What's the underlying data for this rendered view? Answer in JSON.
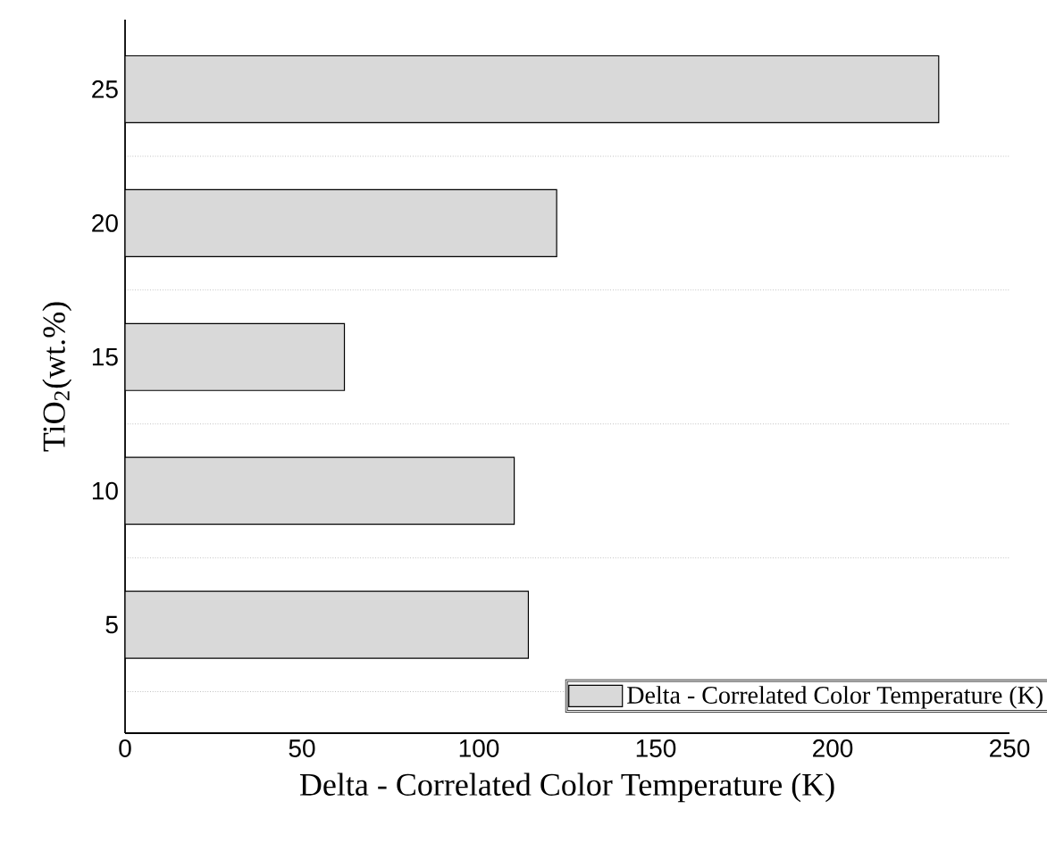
{
  "chart_data": {
    "type": "bar",
    "orientation": "horizontal",
    "xlabel": "Delta - Correlated Color Temperature (K)",
    "ylabel": "TiO$_{2}$(wt.%)",
    "categories": [
      "25",
      "20",
      "15",
      "10",
      "5"
    ],
    "series": [
      {
        "name": "Delta - Correlated Color Temperature (K)",
        "color": "#d9d9d9",
        "values": [
          230,
          122,
          62,
          110,
          114
        ]
      }
    ],
    "xlim": [
      0,
      250
    ],
    "xticks": [
      0,
      50,
      100,
      150,
      200,
      250
    ],
    "grid": "y",
    "legend": "bottom right"
  }
}
